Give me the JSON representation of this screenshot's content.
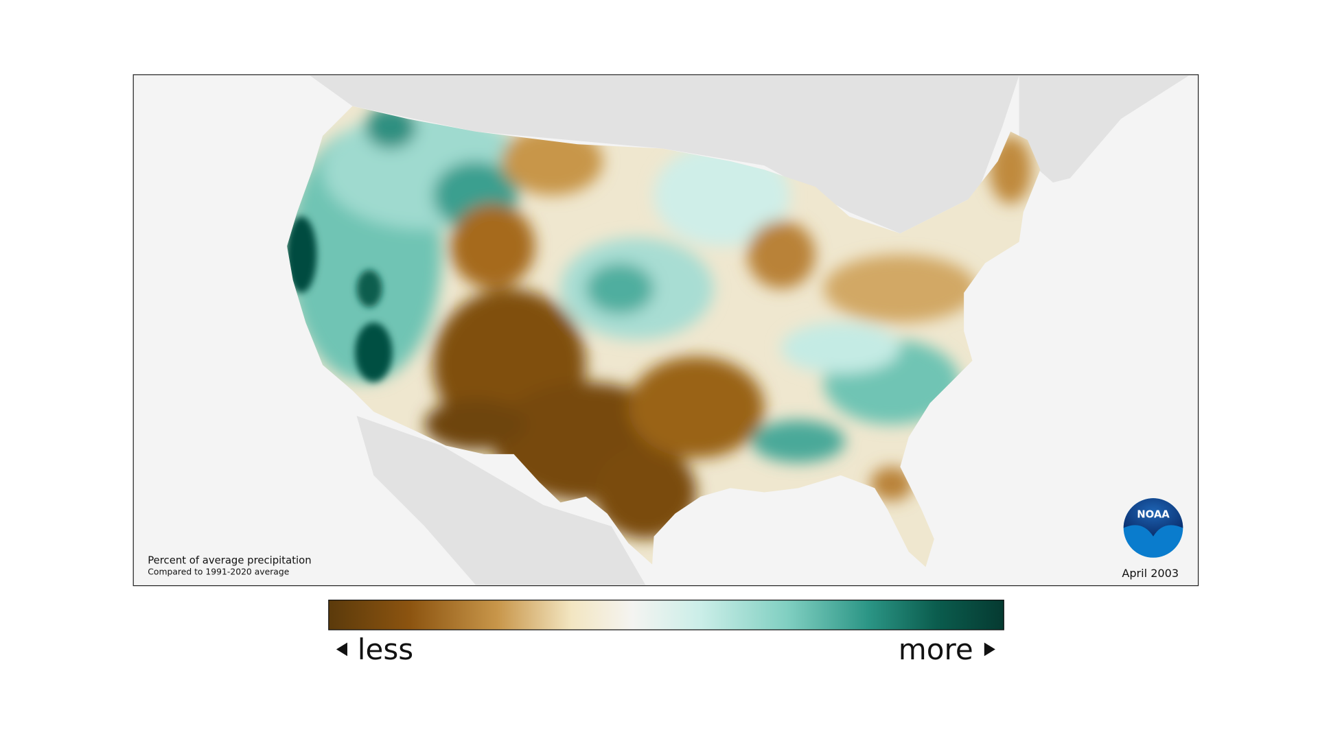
{
  "map": {
    "caption": {
      "title": "Percent of average precipitation",
      "subtitle": "Compared to 1991-2020 average"
    },
    "date": "April 2003",
    "logo": "NOAA"
  },
  "legend": {
    "low_label": "less",
    "high_label": "more"
  }
}
